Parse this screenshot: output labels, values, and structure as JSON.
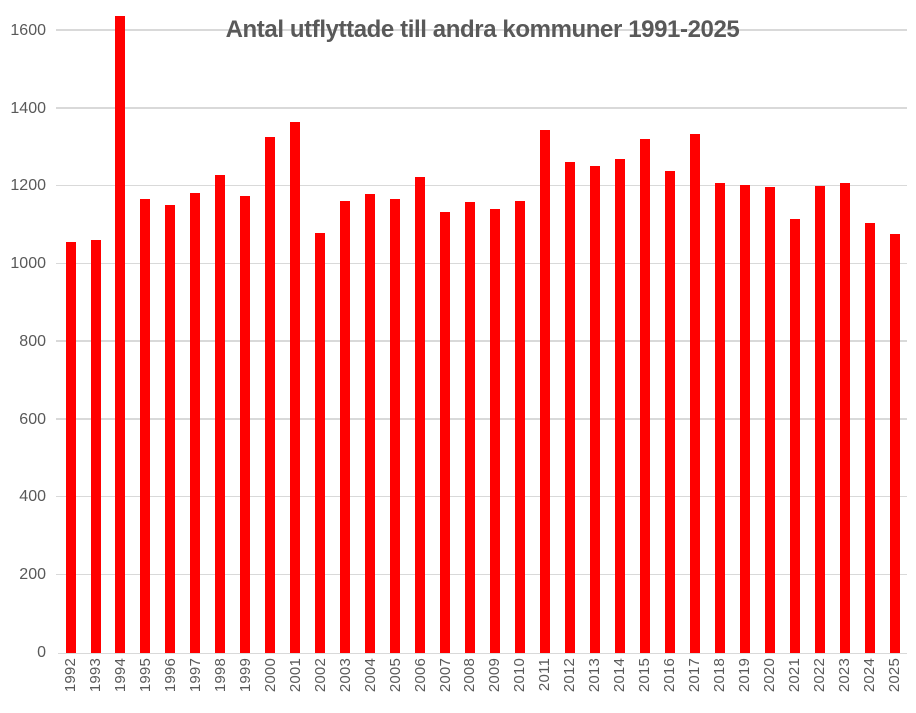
{
  "title": "Antal utflyttade till andra kommuner 1991-2025",
  "colors": {
    "bar": "#ff0000",
    "gridline": "#d9d9d9",
    "axis_line": "#d9d9d9",
    "text": "#595959",
    "background": "#ffffff"
  },
  "chart_data": {
    "type": "bar",
    "title": "Antal utflyttade till andra kommuner 1991-2025",
    "xlabel": "",
    "ylabel": "",
    "categories": [
      "1992",
      "1993",
      "1994",
      "1995",
      "1996",
      "1997",
      "1998",
      "1999",
      "2000",
      "2001",
      "2002",
      "2003",
      "2004",
      "2005",
      "2006",
      "2007",
      "2008",
      "2009",
      "2010",
      "2011",
      "2012",
      "2013",
      "2014",
      "2015",
      "2016",
      "2017",
      "2018",
      "2019",
      "2020",
      "2021",
      "2022",
      "2023",
      "2024",
      "2025"
    ],
    "values": [
      1056,
      1061,
      1637,
      1168,
      1153,
      1184,
      1229,
      1174,
      1328,
      1366,
      1080,
      1162,
      1180,
      1168,
      1225,
      1134,
      1160,
      1141,
      1163,
      1344,
      1263,
      1251,
      1271,
      1322,
      1240,
      1335,
      1208,
      1204,
      1198,
      1117,
      1200,
      1208,
      1105,
      1078
    ],
    "ylim": [
      0,
      1600
    ],
    "yticks": [
      0,
      200,
      400,
      600,
      800,
      1000,
      1200,
      1400,
      1600
    ],
    "grid": true,
    "legend": false,
    "bar_color": "#ff0000",
    "x_tick_rotation_degrees": 90
  }
}
